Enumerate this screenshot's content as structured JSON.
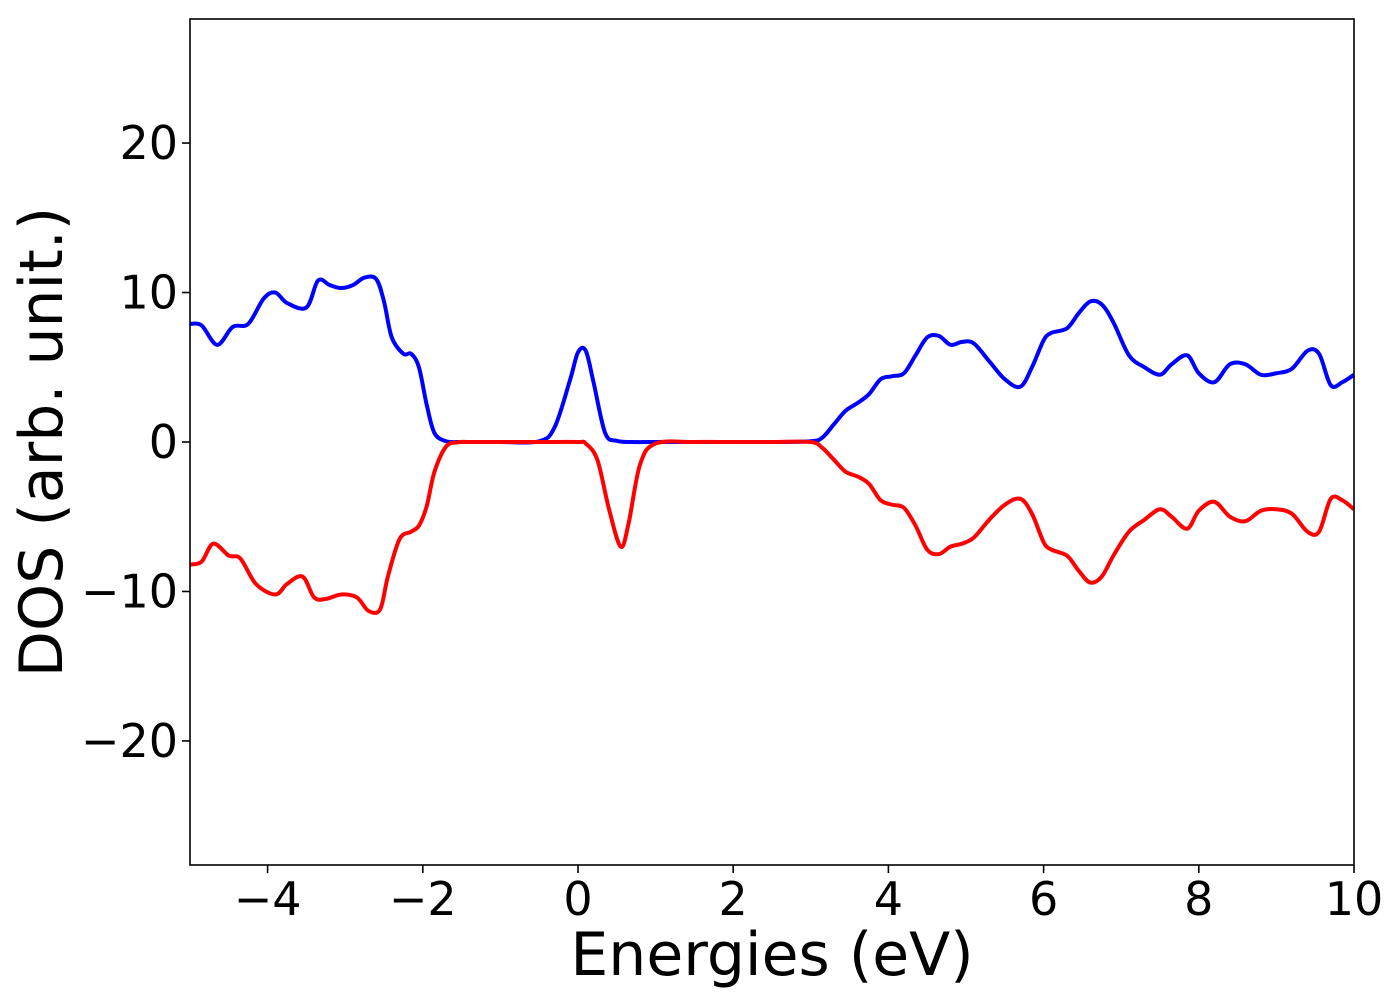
{
  "chart_data": {
    "type": "line",
    "title": "",
    "xlabel": "Energies (eV)",
    "ylabel": "DOS (arb. unit.)",
    "xlim": [
      -5,
      10
    ],
    "ylim": [
      -28.3,
      28.3
    ],
    "xticks": [
      -4,
      -2,
      0,
      2,
      4,
      6,
      8,
      10
    ],
    "xtick_labels": [
      "−4",
      "−2",
      "0",
      "2",
      "4",
      "6",
      "8",
      "10"
    ],
    "yticks": [
      20,
      10,
      0,
      -10,
      -20
    ],
    "ytick_labels": [
      "20",
      "10",
      "0",
      "−10",
      "−20"
    ],
    "grid": false,
    "legend": "none",
    "series": [
      {
        "color": "#0000ff",
        "x": [
          -5.0,
          -4.85,
          -4.65,
          -4.45,
          -4.25,
          -4.05,
          -3.9,
          -3.75,
          -3.5,
          -3.35,
          -3.2,
          -3.05,
          -2.9,
          -2.75,
          -2.6,
          -2.5,
          -2.4,
          -2.25,
          -2.15,
          -2.05,
          -1.95,
          -1.85,
          -1.7,
          -1.55,
          -1.4,
          -1.0,
          -0.5,
          -0.3,
          -0.1,
          0.0,
          0.1,
          0.2,
          0.35,
          0.5,
          0.7,
          1.0,
          1.5,
          2.0,
          2.5,
          3.0,
          3.15,
          3.3,
          3.45,
          3.6,
          3.75,
          3.9,
          4.05,
          4.2,
          4.35,
          4.5,
          4.65,
          4.8,
          4.95,
          5.1,
          5.3,
          5.5,
          5.7,
          5.85,
          6.0,
          6.1,
          6.3,
          6.45,
          6.6,
          6.75,
          6.9,
          7.1,
          7.3,
          7.5,
          7.65,
          7.85,
          8.0,
          8.2,
          8.4,
          8.6,
          8.8,
          9.0,
          9.2,
          9.4,
          9.55,
          9.7,
          9.85,
          10.0
        ],
        "y": [
          7.9,
          7.8,
          6.5,
          7.7,
          7.9,
          9.6,
          10.0,
          9.3,
          9.0,
          10.8,
          10.5,
          10.3,
          10.5,
          11.0,
          10.9,
          9.4,
          7.0,
          5.9,
          5.9,
          5.0,
          2.5,
          0.6,
          0.05,
          0.0,
          0.0,
          0.0,
          0.05,
          1.0,
          4.2,
          6.0,
          6.1,
          4.0,
          0.6,
          0.08,
          0.0,
          0.0,
          0.0,
          0.0,
          0.0,
          0.05,
          0.3,
          1.2,
          2.1,
          2.6,
          3.2,
          4.2,
          4.4,
          4.6,
          5.8,
          7.0,
          7.1,
          6.5,
          6.7,
          6.6,
          5.4,
          4.2,
          3.7,
          5.0,
          6.8,
          7.3,
          7.6,
          8.6,
          9.4,
          9.2,
          8.0,
          5.8,
          5.0,
          4.5,
          5.2,
          5.8,
          4.6,
          4.0,
          5.2,
          5.2,
          4.5,
          4.6,
          4.9,
          6.1,
          5.9,
          3.8,
          4.0,
          4.5
        ]
      },
      {
        "color": "#ff0000",
        "x": [
          -5.0,
          -4.85,
          -4.7,
          -4.5,
          -4.35,
          -4.15,
          -3.9,
          -3.75,
          -3.55,
          -3.4,
          -3.25,
          -3.05,
          -2.85,
          -2.7,
          -2.55,
          -2.45,
          -2.3,
          -2.15,
          -2.05,
          -1.95,
          -1.85,
          -1.7,
          -1.55,
          -1.4,
          -1.0,
          -0.5,
          0.0,
          0.1,
          0.25,
          0.4,
          0.55,
          0.65,
          0.8,
          1.0,
          1.5,
          2.0,
          2.5,
          3.0,
          3.15,
          3.3,
          3.45,
          3.6,
          3.75,
          3.9,
          4.05,
          4.2,
          4.35,
          4.5,
          4.65,
          4.8,
          4.95,
          5.1,
          5.3,
          5.5,
          5.7,
          5.85,
          6.0,
          6.1,
          6.3,
          6.45,
          6.6,
          6.75,
          6.9,
          7.1,
          7.3,
          7.5,
          7.65,
          7.85,
          8.0,
          8.2,
          8.4,
          8.6,
          8.8,
          9.0,
          9.2,
          9.4,
          9.55,
          9.7,
          9.85,
          10.0
        ],
        "y": [
          -8.2,
          -8.0,
          -6.8,
          -7.6,
          -7.8,
          -9.5,
          -10.2,
          -9.5,
          -9.0,
          -10.4,
          -10.5,
          -10.2,
          -10.4,
          -11.3,
          -11.2,
          -9.0,
          -6.5,
          -6.0,
          -5.6,
          -4.3,
          -2.0,
          -0.3,
          -0.02,
          0.0,
          0.0,
          0.0,
          0.0,
          -0.1,
          -1.2,
          -4.5,
          -7.0,
          -5.5,
          -1.5,
          -0.1,
          0.0,
          0.0,
          0.0,
          0.0,
          -0.4,
          -1.2,
          -2.0,
          -2.3,
          -2.8,
          -3.9,
          -4.2,
          -4.4,
          -5.6,
          -7.2,
          -7.5,
          -7.0,
          -6.8,
          -6.4,
          -5.2,
          -4.2,
          -3.8,
          -4.8,
          -6.7,
          -7.2,
          -7.6,
          -8.6,
          -9.4,
          -9.0,
          -7.6,
          -6.0,
          -5.2,
          -4.5,
          -5.0,
          -5.8,
          -4.6,
          -4.0,
          -5.0,
          -5.3,
          -4.6,
          -4.5,
          -4.8,
          -6.0,
          -6.0,
          -3.8,
          -3.9,
          -4.5
        ]
      }
    ]
  }
}
